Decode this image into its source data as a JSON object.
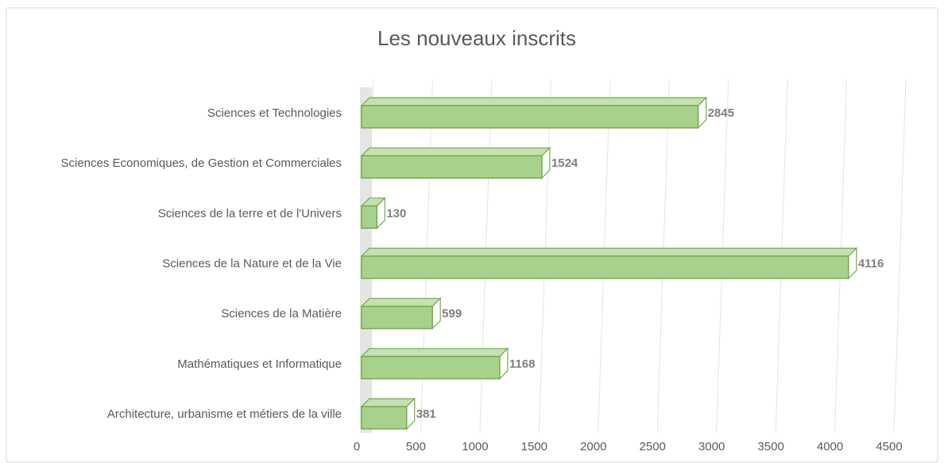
{
  "chart_data": {
    "type": "bar3d_horizontal",
    "title": "Les nouveaux inscrits",
    "categories": [
      "Sciences et Technologies",
      "Sciences Economiques, de Gestion et Commerciales",
      "Sciences de la terre et de l'Univers",
      "Sciences de la Nature et de la Vie",
      "Sciences de la Matière",
      "Mathématiques et Informatique",
      "Architecture, urbanisme et métiers de la ville"
    ],
    "values": [
      2845,
      1524,
      130,
      4116,
      599,
      1168,
      381
    ],
    "color": "#a9d18e",
    "edge_color": "#70ad47",
    "xlim": [
      0,
      4500
    ],
    "xticks": [
      0,
      500,
      1000,
      1500,
      2000,
      2500,
      3000,
      3500,
      4000,
      4500
    ],
    "grid": true
  }
}
